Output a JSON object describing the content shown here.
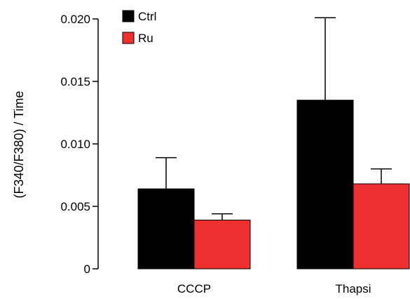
{
  "chart_data": {
    "type": "bar",
    "categories": [
      "CCCP",
      "Thapsi"
    ],
    "series": [
      {
        "name": "Ctrl",
        "color": "#000000",
        "values": [
          0.0064,
          0.0135
        ],
        "errors": [
          0.0025,
          0.0066
        ]
      },
      {
        "name": "Ru",
        "color": "#ee3030",
        "values": [
          0.0039,
          0.0068
        ],
        "errors": [
          0.0005,
          0.0012
        ]
      }
    ],
    "ylabel": "(F340/F380) / Time",
    "xlabel": "",
    "title": "",
    "ylim": [
      0,
      0.02
    ],
    "yticks": [
      0,
      0.005,
      0.01,
      0.015,
      0.02
    ],
    "ytick_labels": [
      "0",
      "0.005",
      "0.010",
      "0.015",
      "0.020"
    ],
    "legend_position": "top-left",
    "grid": false
  }
}
